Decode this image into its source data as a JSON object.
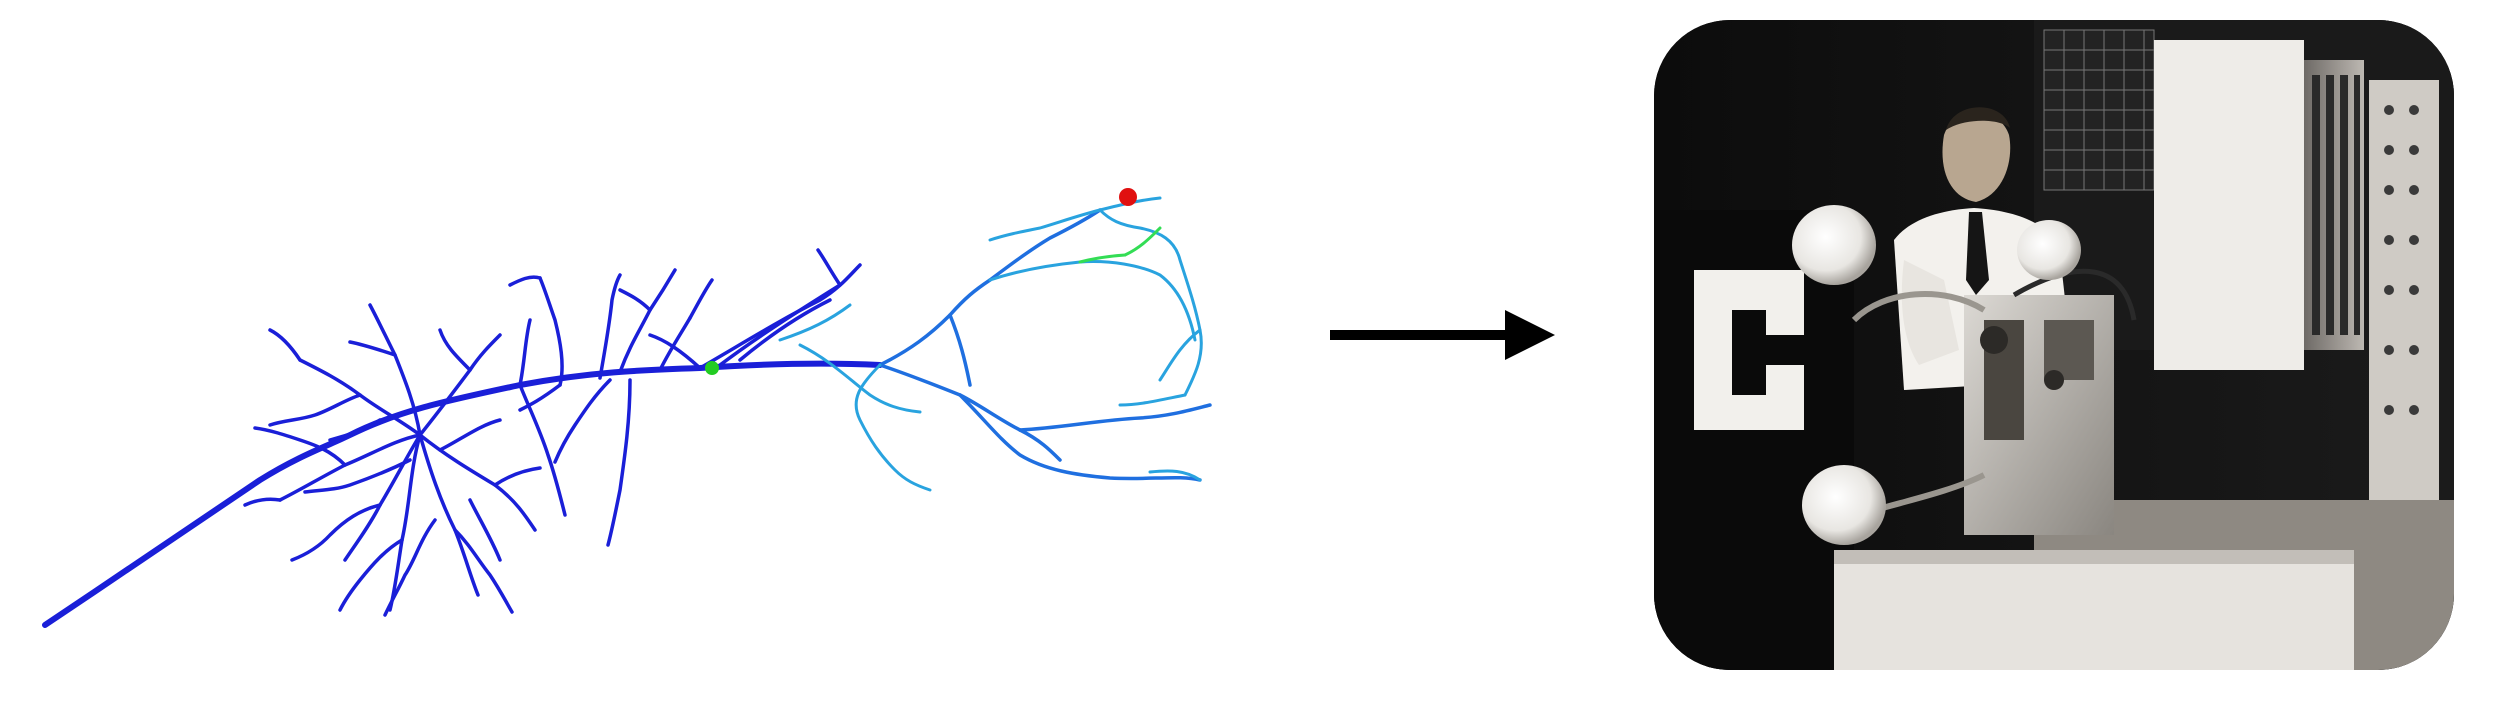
{
  "figure": {
    "left_panel": {
      "kind": "neuron-morphology-reconstruction",
      "colors": {
        "dendrite_dark": "#1a1fd8",
        "dendrite_mid": "#1f6fe0",
        "dendrite_light": "#29a3df",
        "marker_start": "#22cc22",
        "marker_end": "#e01010",
        "trace_green": "#33dd55"
      }
    },
    "transition": {
      "icon": "right-arrow-icon",
      "color": "#000000"
    },
    "right_panel": {
      "kind": "vintage-photograph",
      "letter_on_panel": "C",
      "tone": "sepia-black-and-white"
    }
  }
}
